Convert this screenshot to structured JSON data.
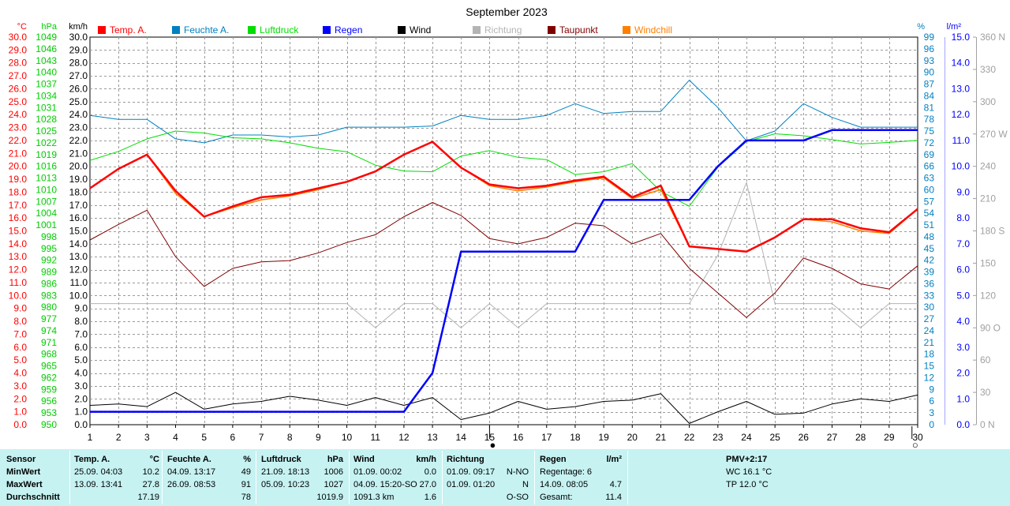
{
  "chart_data": {
    "type": "line",
    "title": "September 2023",
    "x": [
      1,
      2,
      3,
      4,
      5,
      6,
      7,
      8,
      9,
      10,
      11,
      12,
      13,
      14,
      15,
      16,
      17,
      18,
      19,
      20,
      21,
      22,
      23,
      24,
      25,
      26,
      27,
      28,
      29,
      30
    ],
    "grid": true,
    "legend_placement": "top",
    "axes": {
      "temp": {
        "unit": "°C",
        "range": [
          0,
          30
        ],
        "step": 1,
        "color": "#ff0000"
      },
      "pressure": {
        "unit": "hPa",
        "range": [
          950,
          1049
        ],
        "step": 3,
        "color": "#00cc00"
      },
      "wind": {
        "unit": "km/h",
        "range": [
          0,
          30
        ],
        "step": 1,
        "color": "#000000"
      },
      "humidity": {
        "unit": "%",
        "range": [
          0,
          99
        ],
        "step": 3,
        "color": "#0080c0"
      },
      "rain": {
        "unit": "l/m²",
        "range": [
          0,
          15
        ],
        "step": 1,
        "color": "#0000ff"
      },
      "direction": {
        "range": [
          0,
          360
        ],
        "step": 30,
        "color": "#a0a0a0",
        "labels": [
          "0 N",
          "30",
          "60",
          "90 O",
          "120",
          "150",
          "180 S",
          "210",
          "240",
          "270 W",
          "300",
          "330",
          "360 N"
        ]
      }
    },
    "series": [
      {
        "name": "Temp. A.",
        "axis": "temp",
        "color": "#ff0000",
        "width": 2.5,
        "values": [
          18.3,
          19.8,
          20.9,
          18.1,
          16.1,
          16.9,
          17.6,
          17.8,
          18.3,
          18.8,
          19.6,
          20.9,
          21.9,
          19.9,
          18.6,
          18.3,
          18.5,
          18.9,
          19.2,
          17.6,
          18.5,
          13.8,
          13.6,
          13.4,
          14.5,
          15.9,
          15.9,
          15.2,
          14.9,
          16.7
        ]
      },
      {
        "name": "Feuchte A.",
        "axis": "humidity",
        "color": "#0080c0",
        "width": 1,
        "values": [
          79,
          78,
          78,
          73,
          72,
          74,
          74,
          73.5,
          74,
          76,
          76,
          76,
          76.3,
          79,
          78,
          78,
          79,
          82,
          79.5,
          80,
          80,
          88,
          81,
          72.5,
          75,
          82,
          78.5,
          76,
          76,
          76
        ]
      },
      {
        "name": "Luftdruck",
        "axis": "pressure",
        "color": "#00dd00",
        "width": 1,
        "values": [
          1017.5,
          1019.8,
          1023,
          1025,
          1024.5,
          1023.3,
          1023,
          1022,
          1020.6,
          1019.7,
          1016.3,
          1014.8,
          1014.6,
          1018.6,
          1020,
          1018.3,
          1017.7,
          1013.9,
          1014.6,
          1016.7,
          1009.6,
          1005.8,
          1015.8,
          1022.3,
          1024.3,
          1023.8,
          1022.8,
          1021.7,
          1022.1,
          1022.6
        ]
      },
      {
        "name": "Regen",
        "axis": "rain",
        "color": "#0000ff",
        "width": 2.5,
        "values": [
          0.5,
          0.5,
          0.5,
          0.5,
          0.5,
          0.5,
          0.5,
          0.5,
          0.5,
          0.5,
          0.5,
          0.5,
          2.0,
          6.7,
          6.7,
          6.7,
          6.7,
          6.7,
          8.7,
          8.7,
          8.7,
          8.7,
          10.0,
          11.0,
          11.0,
          11.0,
          11.4,
          11.4,
          11.4,
          11.4
        ]
      },
      {
        "name": "Wind",
        "axis": "wind",
        "color": "#000000",
        "width": 1,
        "values": [
          1.5,
          1.6,
          1.4,
          2.5,
          1.2,
          1.6,
          1.8,
          2.2,
          1.9,
          1.5,
          2.1,
          1.5,
          2.1,
          0.4,
          0.9,
          1.8,
          1.2,
          1.4,
          1.8,
          1.9,
          2.4,
          0.1,
          1.0,
          1.8,
          0.8,
          0.9,
          1.6,
          2.0,
          1.8,
          2.3
        ]
      },
      {
        "name": "Richtung",
        "axis": "direction",
        "color": "#b4b4b4",
        "width": 1,
        "values": [
          112.5,
          112.5,
          112.5,
          112.5,
          112.5,
          112.5,
          112.5,
          112.5,
          112.5,
          112.5,
          90,
          112.5,
          112.5,
          90,
          112.5,
          90,
          112.5,
          112.5,
          112.5,
          112.5,
          112.5,
          112.5,
          157.5,
          225,
          112.5,
          112.5,
          112.5,
          90,
          112.5,
          112.5
        ]
      },
      {
        "name": "Taupunkt",
        "axis": "temp",
        "color": "#800000",
        "width": 1,
        "values": [
          14.3,
          15.5,
          16.6,
          13.0,
          10.7,
          12.1,
          12.6,
          12.7,
          13.3,
          14.1,
          14.7,
          16.1,
          17.2,
          16.2,
          14.4,
          14.0,
          14.5,
          15.6,
          15.4,
          14.0,
          14.8,
          12.1,
          10.2,
          8.3,
          10.2,
          12.9,
          12.1,
          10.9,
          10.5,
          12.3
        ]
      },
      {
        "name": "Windchill",
        "axis": "temp",
        "color": "#ff8000",
        "width": 1.5,
        "values": [
          18.3,
          19.8,
          20.9,
          17.9,
          16.1,
          16.8,
          17.4,
          17.7,
          18.2,
          18.8,
          19.6,
          20.9,
          21.9,
          19.9,
          18.5,
          18.1,
          18.4,
          18.8,
          19.1,
          17.5,
          18.2,
          13.8,
          13.6,
          13.4,
          14.5,
          15.9,
          15.7,
          15.0,
          14.8,
          16.7
        ]
      }
    ],
    "markers": [
      {
        "x": 15,
        "symbol": "●",
        "meaning": "new-moon"
      },
      {
        "x": 29.8,
        "symbol": "○",
        "meaning": "full-moon"
      }
    ]
  },
  "stats": {
    "sensor": {
      "label": "Sensor",
      "min": "MinWert",
      "max": "MaxWert",
      "avg": "Durchschnitt"
    },
    "temp": {
      "label": "Temp. A.",
      "unit": "°C",
      "min": {
        "when": "25.09.  04:03",
        "value": "10.2"
      },
      "max": {
        "when": "13.09.  13:41",
        "value": "27.8"
      },
      "avg": "17.19"
    },
    "humidity": {
      "label": "Feuchte A.",
      "unit": "%",
      "min": {
        "when": "04.09.  13:17",
        "value": "49"
      },
      "max": {
        "when": "26.09.  08:53",
        "value": "91"
      },
      "avg": "78"
    },
    "pressure": {
      "label": "Luftdruck",
      "unit": "hPa",
      "min": {
        "when": "21.09.  18:13",
        "value": "1006"
      },
      "max": {
        "when": "05.09.  10:23",
        "value": "1027"
      },
      "avg": "1019.9"
    },
    "wind": {
      "label": "Wind",
      "unit": "km/h",
      "min": {
        "when": "01.09.  00:02",
        "value": "0.0"
      },
      "max": {
        "when": "04.09.  15:20-SO",
        "value": "27.0"
      },
      "avg_when": "1091.3 km",
      "avg": "1.6"
    },
    "direction": {
      "label": "Richtung",
      "min": {
        "when": "01.09.  09:17",
        "value": "N-NO"
      },
      "max": {
        "when": "01.09.  01:20",
        "value": "N"
      },
      "avg": "O-SO"
    },
    "rain": {
      "label": "Regen",
      "unit": "l/m²",
      "min": {
        "when": "Regentage: 6",
        "value": ""
      },
      "max": {
        "when": "14.09.  08:05",
        "value": "4.7"
      },
      "avg_when": "Gesamt:",
      "avg": "11.4"
    },
    "pmv": {
      "title": "PMV+2:17",
      "wc": "WC 16.1 °C",
      "tp": "TP 12.0 °C"
    }
  }
}
